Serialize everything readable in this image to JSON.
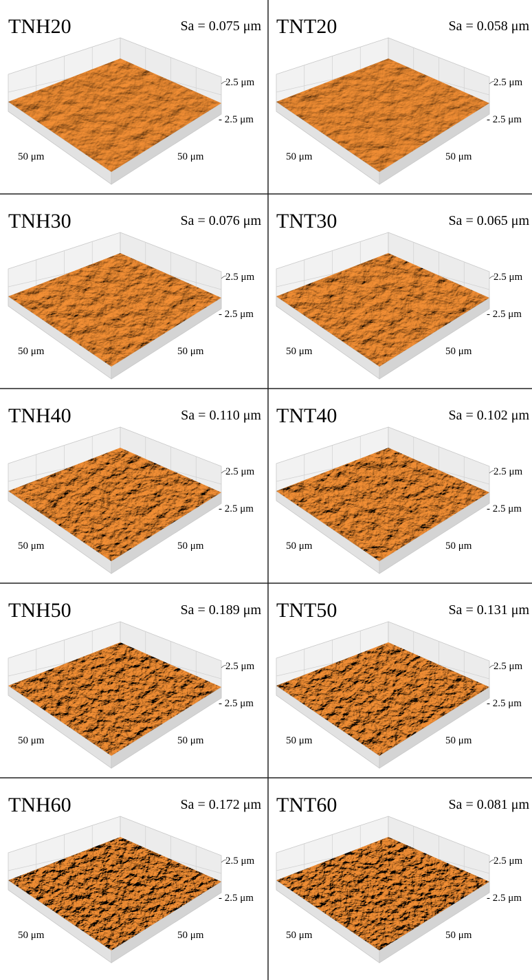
{
  "panels": [
    {
      "title": "TNH20",
      "sa": "Sa = 0.075 μm",
      "z_max": "2.5 μm",
      "z_min": "- 2.5 μm",
      "x_label": "50 μm",
      "y_label": "50 μm"
    },
    {
      "title": "TNT20",
      "sa": "Sa = 0.058 μm",
      "z_max": "2.5 μm",
      "z_min": "- 2.5 μm",
      "x_label": "50 μm",
      "y_label": "50 μm"
    },
    {
      "title": "TNH30",
      "sa": "Sa = 0.076 μm",
      "z_max": "2.5 μm",
      "z_min": "- 2.5 μm",
      "x_label": "50 μm",
      "y_label": "50 μm"
    },
    {
      "title": "TNT30",
      "sa": "Sa = 0.065 μm",
      "z_max": "2.5 μm",
      "z_min": "- 2.5 μm",
      "x_label": "50 μm",
      "y_label": "50 μm"
    },
    {
      "title": "TNH40",
      "sa": "Sa = 0.110 μm",
      "z_max": "2.5 μm",
      "z_min": "- 2.5 μm",
      "x_label": "50 μm",
      "y_label": "50 μm"
    },
    {
      "title": "TNT40",
      "sa": "Sa = 0.102 μm",
      "z_max": "2.5 μm",
      "z_min": "- 2.5 μm",
      "x_label": "50 μm",
      "y_label": "50 μm"
    },
    {
      "title": "TNH50",
      "sa": "Sa = 0.189 μm",
      "z_max": "2.5 μm",
      "z_min": "- 2.5 μm",
      "x_label": "50 μm",
      "y_label": "50 μm"
    },
    {
      "title": "TNT50",
      "sa": "Sa = 0.131 μm",
      "z_max": "2.5 μm",
      "z_min": "- 2.5 μm",
      "x_label": "50 μm",
      "y_label": "50 μm"
    },
    {
      "title": "TNH60",
      "sa": "Sa = 0.172 μm",
      "z_max": "2.5 μm",
      "z_min": "- 2.5 μm",
      "x_label": "50 μm",
      "y_label": "50 μm"
    },
    {
      "title": "TNT60",
      "sa": "Sa = 0.081 μm",
      "z_max": "2.5 μm",
      "z_min": "- 2.5 μm",
      "x_label": "50 μm",
      "y_label": "50 μm"
    }
  ]
}
